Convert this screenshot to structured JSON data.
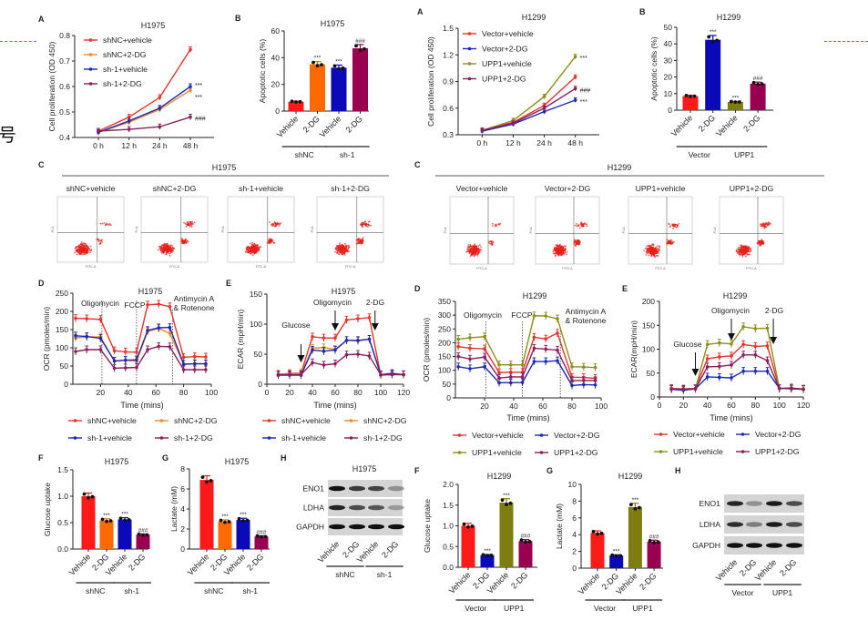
{
  "page": {
    "fragment_text": "号",
    "guide_color": "#3a7fe0"
  },
  "chart_data": [
    {
      "type": "line",
      "panel": "A",
      "title": "H1975",
      "ylabel": "Cell proliferation (OD 450)",
      "categories": [
        "0 h",
        "12 h",
        "24 h",
        "48 h"
      ],
      "ylim": [
        0.4,
        0.8
      ],
      "yticks": [
        "0.4",
        "0.5",
        "0.6",
        "0.7",
        "0.8"
      ],
      "series": [
        {
          "name": "shNC+vehicle",
          "color": "#e8352c",
          "values": [
            0.425,
            0.48,
            0.557,
            0.745
          ],
          "annotation": ""
        },
        {
          "name": "shNC+2-DG",
          "color": "#f3892f",
          "values": [
            0.42,
            0.46,
            0.51,
            0.585
          ],
          "annotation": "***"
        },
        {
          "name": "sh-1+vehicle",
          "color": "#1c2bb0",
          "values": [
            0.42,
            0.465,
            0.515,
            0.6
          ],
          "annotation": "***"
        },
        {
          "name": "sh-1+2-DG",
          "color": "#8a1f5e",
          "values": [
            0.425,
            0.432,
            0.442,
            0.48
          ],
          "annotation": "###"
        }
      ]
    },
    {
      "type": "bar",
      "panel": "B",
      "title": "H1975",
      "ylabel": "Apoptotic cells (%)",
      "ylim": [
        0,
        60
      ],
      "yticks": [
        "0",
        "20",
        "40",
        "60"
      ],
      "categories": [
        "Vehicle",
        "2-DG",
        "Vehicle",
        "2-DG"
      ],
      "values": [
        7,
        35,
        32.5,
        47
      ],
      "colors": [
        "#ff1a1a",
        "#ff6a00",
        "#0a0ab8",
        "#990050"
      ],
      "annotations": [
        "",
        "***",
        "***",
        "###"
      ],
      "groups": [
        {
          "label": "shNC",
          "span": [
            0,
            1
          ]
        },
        {
          "label": "sh-1",
          "span": [
            2,
            3
          ]
        }
      ]
    },
    {
      "type": "line",
      "panel": "A",
      "title": "H1299",
      "ylabel": "Cell proliferation (OD 450)",
      "categories": [
        "0 h",
        "12 h",
        "24 h",
        "48 h"
      ],
      "ylim": [
        0.3,
        1.5
      ],
      "yticks": [
        "0.3",
        "0.6",
        "0.9",
        "1.2",
        "1.5"
      ],
      "series": [
        {
          "name": "Vector+vehicle",
          "color": "#e8352c",
          "values": [
            0.35,
            0.44,
            0.63,
            0.95
          ],
          "annotation": ""
        },
        {
          "name": "Vector+2-DG",
          "color": "#1c2bb0",
          "values": [
            0.34,
            0.42,
            0.56,
            0.69
          ],
          "annotation": "***"
        },
        {
          "name": "UPP1+vehicle",
          "color": "#8f8f1e",
          "values": [
            0.35,
            0.46,
            0.73,
            1.18
          ],
          "annotation": "***"
        },
        {
          "name": "UPP1+2-DG",
          "color": "#8a1f5e",
          "values": [
            0.35,
            0.43,
            0.6,
            0.82
          ],
          "annotation": "###"
        }
      ]
    },
    {
      "type": "bar",
      "panel": "B",
      "title": "H1299",
      "ylabel": "Apoptotic cells (%)",
      "ylim": [
        0,
        50
      ],
      "yticks": [
        "0",
        "10",
        "20",
        "30",
        "40",
        "50"
      ],
      "categories": [
        "Vehicle",
        "2-DG",
        "Vehicle",
        "2-DG"
      ],
      "values": [
        8.5,
        42.5,
        5,
        16
      ],
      "colors": [
        "#ff1a1a",
        "#0a0ab8",
        "#7d7d10",
        "#990050"
      ],
      "annotations": [
        "",
        "***",
        "***",
        "###"
      ],
      "groups": [
        {
          "label": "Vector",
          "span": [
            0,
            1
          ]
        },
        {
          "label": "UPP1",
          "span": [
            2,
            3
          ]
        }
      ]
    },
    {
      "type": "scatter",
      "panel": "C",
      "title": "H1975",
      "xlabel": "FITC-A",
      "ylabel": "PI-A",
      "samples": [
        {
          "name": "shNC+vehicle"
        },
        {
          "name": "shNC+2-DG"
        },
        {
          "name": "sh-1+vehicle"
        },
        {
          "name": "sh-1+2-DG"
        }
      ]
    },
    {
      "type": "scatter",
      "panel": "C",
      "title": "H1299",
      "xlabel": "FITC-A",
      "ylabel": "PI-A",
      "samples": [
        {
          "name": "Vector+vehicle"
        },
        {
          "name": "Vector+2-DG"
        },
        {
          "name": "UPP1+vehicle"
        },
        {
          "name": "UPP1+2-DG"
        }
      ]
    },
    {
      "type": "line",
      "panel": "D",
      "title": "H1975",
      "ylabel": "OCR (pmoles/min)",
      "xlabel": "Time (mins)",
      "x": [
        2,
        10,
        20,
        30,
        38,
        46,
        54,
        62,
        70,
        80,
        88,
        96
      ],
      "xlim": [
        0,
        100
      ],
      "xticks": [
        "20",
        "40",
        "60",
        "80",
        "100"
      ],
      "ylim": [
        0,
        250
      ],
      "yticks": [
        "0",
        "50",
        "100",
        "150",
        "200",
        "250"
      ],
      "treatments": [
        {
          "x": 21,
          "marker": "dashed-line",
          "label": [
            "Oligomycin"
          ]
        },
        {
          "x": 46,
          "marker": "dashed-line",
          "label": [
            "FCCP"
          ]
        },
        {
          "x": 72,
          "marker": "dashed-line",
          "label": [
            "Antimycin A",
            "& Rotenone"
          ]
        }
      ],
      "series": [
        {
          "name": "shNC+vehicle",
          "color": "#e8352c",
          "values": [
            181,
            180,
            178,
            92,
            89,
            88,
            218,
            220,
            213,
            74,
            76,
            75
          ]
        },
        {
          "name": "shNC+2-DG",
          "color": "#f3892f",
          "values": [
            127,
            130,
            130,
            63,
            66,
            63,
            145,
            153,
            140,
            55,
            57,
            56
          ]
        },
        {
          "name": "sh-1+vehicle",
          "color": "#1c2bb0",
          "values": [
            133,
            131,
            126,
            64,
            66,
            67,
            148,
            155,
            156,
            55,
            56,
            56
          ]
        },
        {
          "name": "sh-1+2-DG",
          "color": "#8a1f5e",
          "values": [
            90,
            95,
            95,
            44,
            45,
            46,
            95,
            104,
            103,
            40,
            40,
            40
          ]
        }
      ]
    },
    {
      "type": "line",
      "panel": "E",
      "title": "H1975",
      "ylabel": "ECAR (mpH/min)",
      "xlabel": "Time (mins)",
      "x": [
        10,
        20,
        30,
        40,
        50,
        60,
        70,
        80,
        90,
        100,
        110,
        120
      ],
      "xlim": [
        0,
        120
      ],
      "xticks": [
        "0",
        "20",
        "40",
        "60",
        "80",
        "100",
        "120"
      ],
      "ylim": [
        0,
        150
      ],
      "yticks": [
        "0",
        "50",
        "100",
        "150"
      ],
      "treatments": [
        {
          "x": 30,
          "marker": "arrow",
          "label": [
            "Glucose"
          ]
        },
        {
          "x": 60,
          "marker": "arrow",
          "label": [
            "Oligomycin"
          ]
        },
        {
          "x": 95,
          "marker": "arrow",
          "label": [
            "2-DG"
          ]
        }
      ],
      "series": [
        {
          "name": "shNC+vehicle",
          "color": "#e8352c",
          "values": [
            16,
            18,
            18,
            79,
            77,
            77,
            107,
            109,
            111,
            15,
            16,
            16
          ]
        },
        {
          "name": "shNC+2-DG",
          "color": "#f3892f",
          "values": [
            17,
            17,
            17,
            60,
            61,
            58,
            73,
            72,
            75,
            16,
            17,
            16
          ]
        },
        {
          "name": "sh-1+vehicle",
          "color": "#1c2bb0",
          "values": [
            15,
            15,
            15,
            57,
            55,
            57,
            73,
            73,
            75,
            16,
            18,
            16
          ]
        },
        {
          "name": "sh-1+2-DG",
          "color": "#8a1f5e",
          "values": [
            16,
            16,
            16,
            36,
            32,
            34,
            49,
            50,
            47,
            16,
            16,
            16
          ]
        }
      ]
    },
    {
      "type": "line",
      "panel": "D",
      "title": "H1299",
      "ylabel": "OCR (pmoles/min)",
      "xlabel": "Time (mins)",
      "x": [
        2,
        10,
        20,
        30,
        38,
        46,
        54,
        62,
        70,
        80,
        88,
        96
      ],
      "xlim": [
        0,
        100
      ],
      "xticks": [
        "20",
        "40",
        "60",
        "80",
        "100"
      ],
      "ylim": [
        0,
        350
      ],
      "yticks": [
        "0",
        "50",
        "100",
        "150",
        "200",
        "250",
        "300",
        "350"
      ],
      "treatments": [
        {
          "x": 21,
          "marker": "dashed-line",
          "label": [
            "Oligomycin"
          ]
        },
        {
          "x": 46,
          "marker": "dashed-line",
          "label": [
            "FCCP"
          ]
        },
        {
          "x": 72,
          "marker": "dashed-line",
          "label": [
            "Antimycin A",
            "& Rotenone"
          ]
        }
      ],
      "series": [
        {
          "name": "Vector+vehicle",
          "color": "#e8352c",
          "values": [
            186,
            180,
            178,
            92,
            93,
            93,
            220,
            214,
            235,
            75,
            74,
            71
          ]
        },
        {
          "name": "Vector+2-DG",
          "color": "#1c2bb0",
          "values": [
            113,
            106,
            113,
            55,
            55,
            56,
            132,
            132,
            135,
            45,
            48,
            47
          ]
        },
        {
          "name": "UPP1+vehicle",
          "color": "#8f8f1e",
          "values": [
            213,
            218,
            222,
            120,
            120,
            120,
            298,
            297,
            287,
            113,
            112,
            110
          ]
        },
        {
          "name": "UPP1+2-DG",
          "color": "#8a1f5e",
          "values": [
            150,
            141,
            148,
            72,
            76,
            76,
            180,
            177,
            173,
            63,
            63,
            63
          ]
        }
      ]
    },
    {
      "type": "line",
      "panel": "E",
      "title": "H1299",
      "ylabel": "ECAR(mpH/min)",
      "xlabel": "Time (mins)",
      "x": [
        10,
        20,
        30,
        40,
        50,
        60,
        70,
        80,
        90,
        100,
        110,
        120
      ],
      "xlim": [
        0,
        120
      ],
      "xticks": [
        "0",
        "20",
        "40",
        "60",
        "80",
        "100",
        "120"
      ],
      "ylim": [
        0,
        200
      ],
      "yticks": [
        "0",
        "50",
        "100",
        "150",
        "200"
      ],
      "treatments": [
        {
          "x": 30,
          "marker": "arrow",
          "label": [
            "Glucose"
          ]
        },
        {
          "x": 60,
          "marker": "arrow",
          "label": [
            "Oligomycin"
          ]
        },
        {
          "x": 95,
          "marker": "arrow",
          "label": [
            "2-DG"
          ]
        }
      ],
      "series": [
        {
          "name": "Vector+vehicle",
          "color": "#e8352c",
          "values": [
            18,
            17,
            18,
            80,
            84,
            86,
            110,
            106,
            107,
            18,
            17,
            16
          ]
        },
        {
          "name": "Vector+2-DG",
          "color": "#1c2bb0",
          "values": [
            16,
            14,
            17,
            42,
            41,
            40,
            54,
            54,
            54,
            18,
            17,
            16
          ]
        },
        {
          "name": "UPP1+vehicle",
          "color": "#8f8f1e",
          "values": [
            17,
            16,
            17,
            110,
            113,
            111,
            147,
            143,
            144,
            18,
            18,
            17
          ]
        },
        {
          "name": "UPP1+2-DG",
          "color": "#8a1f5e",
          "values": [
            17,
            16,
            17,
            63,
            64,
            67,
            88,
            88,
            76,
            18,
            19,
            16
          ]
        }
      ]
    },
    {
      "type": "bar",
      "panel": "F",
      "title": "H1975",
      "ylabel": "Glucose uptake",
      "ylim": [
        0,
        1.5
      ],
      "yticks": [
        "0.0",
        "0.5",
        "1.0",
        "1.5"
      ],
      "categories": [
        "Vehicle",
        "2-DG",
        "Vehicle",
        "2-DG"
      ],
      "values": [
        1.0,
        0.54,
        0.56,
        0.27
      ],
      "colors": [
        "#ff1a1a",
        "#ff6a00",
        "#0a0ab8",
        "#990050"
      ],
      "annotations": [
        "",
        "***",
        "***",
        "###"
      ],
      "groups": [
        {
          "label": "shNC",
          "span": [
            0,
            1
          ]
        },
        {
          "label": "sh-1",
          "span": [
            2,
            3
          ]
        }
      ]
    },
    {
      "type": "bar",
      "panel": "G",
      "title": "H1975",
      "ylabel": "Lactate (mM)",
      "ylim": [
        0,
        8
      ],
      "yticks": [
        "0",
        "2",
        "4",
        "6",
        "8"
      ],
      "categories": [
        "Vehicle",
        "2-DG",
        "Vehicle",
        "2-DG"
      ],
      "values": [
        6.9,
        2.75,
        2.9,
        1.25
      ],
      "colors": [
        "#ff1a1a",
        "#ff6a00",
        "#0a0ab8",
        "#990050"
      ],
      "annotations": [
        "",
        "***",
        "***",
        "###"
      ],
      "groups": [
        {
          "label": "shNC",
          "span": [
            0,
            1
          ]
        },
        {
          "label": "sh-1",
          "span": [
            2,
            3
          ]
        }
      ]
    },
    {
      "type": "blot",
      "panel": "H",
      "title": "H1975",
      "categories": [
        "Vehicle",
        "2-DG",
        "Vehicle",
        "2-DG"
      ],
      "rows": [
        {
          "protein": "ENO1",
          "band_intensity": [
            1,
            0.8,
            0.75,
            0.35
          ]
        },
        {
          "protein": "LDHA",
          "band_intensity": [
            0.9,
            0.7,
            0.65,
            0.3
          ]
        },
        {
          "protein": "GAPDH",
          "band_intensity": [
            1,
            1,
            1,
            1
          ]
        }
      ],
      "groups": [
        {
          "label": "shNC",
          "span": [
            0,
            1
          ]
        },
        {
          "label": "sh-1",
          "span": [
            2,
            3
          ]
        }
      ]
    },
    {
      "type": "bar",
      "panel": "F",
      "title": "H1299",
      "ylabel": "Glucose uptake",
      "ylim": [
        0,
        2
      ],
      "yticks": [
        "0.0",
        "0.5",
        "1.0",
        "1.5",
        "2.0"
      ],
      "categories": [
        "Vehicle",
        "2-DG",
        "Vehicle",
        "2-DG"
      ],
      "values": [
        1.0,
        0.29,
        1.56,
        0.63
      ],
      "colors": [
        "#ff1a1a",
        "#0a0ab8",
        "#7d7d10",
        "#990050"
      ],
      "annotations": [
        "",
        "***",
        "***",
        "###"
      ],
      "groups": [
        {
          "label": "Vector",
          "span": [
            0,
            1
          ]
        },
        {
          "label": "UPP1",
          "span": [
            2,
            3
          ]
        }
      ]
    },
    {
      "type": "bar",
      "panel": "G",
      "title": "H1299",
      "ylabel": "Lactate (mM)",
      "ylim": [
        0,
        10
      ],
      "yticks": [
        "0",
        "2",
        "4",
        "6",
        "8",
        "10"
      ],
      "categories": [
        "Vehicle",
        "2-DG",
        "Vehicle",
        "2-DG"
      ],
      "values": [
        4.2,
        1.5,
        7.3,
        3.15
      ],
      "colors": [
        "#ff1a1a",
        "#0a0ab8",
        "#7d7d10",
        "#990050"
      ],
      "annotations": [
        "",
        "***",
        "***",
        "###"
      ],
      "groups": [
        {
          "label": "Vector",
          "span": [
            0,
            1
          ]
        },
        {
          "label": "UPP1",
          "span": [
            2,
            3
          ]
        }
      ]
    },
    {
      "type": "blot",
      "panel": "H",
      "categories": [
        "Vehicle",
        "2-DG",
        "Vehicle",
        "2-DG"
      ],
      "rows": [
        {
          "protein": "ENO1",
          "band_intensity": [
            0.9,
            0.35,
            0.95,
            0.7
          ]
        },
        {
          "protein": "LDHA",
          "band_intensity": [
            0.85,
            0.45,
            0.95,
            0.7
          ]
        },
        {
          "protein": "GAPDH",
          "band_intensity": [
            1,
            1,
            1,
            1
          ]
        }
      ],
      "groups": [
        {
          "label": "Vector",
          "span": [
            0,
            1
          ]
        },
        {
          "label": "UPP1",
          "span": [
            2,
            3
          ]
        }
      ]
    }
  ]
}
